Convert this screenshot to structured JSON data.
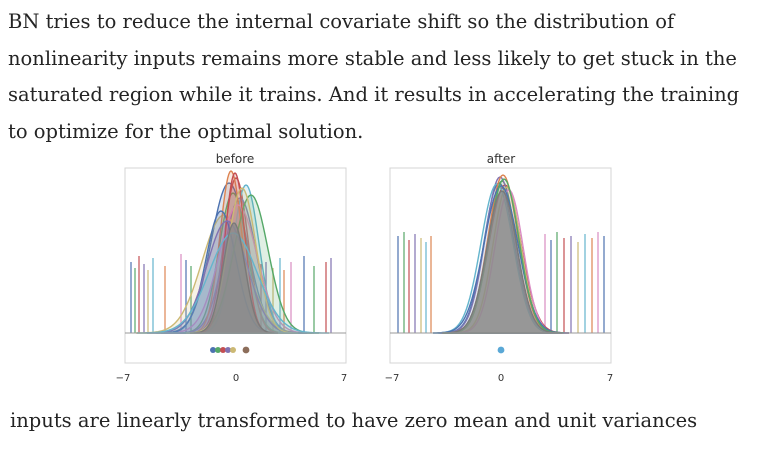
{
  "paragraph": "BN tries to reduce the internal covariate shift so the distribution of nonlinearity inputs remains more stable and less likely to get stuck in the saturated region while it trains. And it results in accelerating the training to optimize for the optimal solution.",
  "caption": "inputs are linearly transformed to have zero  mean and unit variances",
  "figure": {
    "panels": [
      {
        "title": "before",
        "ticks": [
          "−7",
          "0",
          "7"
        ]
      },
      {
        "title": "after",
        "ticks": [
          "−7",
          "0",
          "7"
        ]
      }
    ]
  },
  "colors": [
    "#4c72b0",
    "#55a868",
    "#c44e52",
    "#8172b2",
    "#ccb974",
    "#64b5cd",
    "#dd8452",
    "#da8bc3"
  ]
}
